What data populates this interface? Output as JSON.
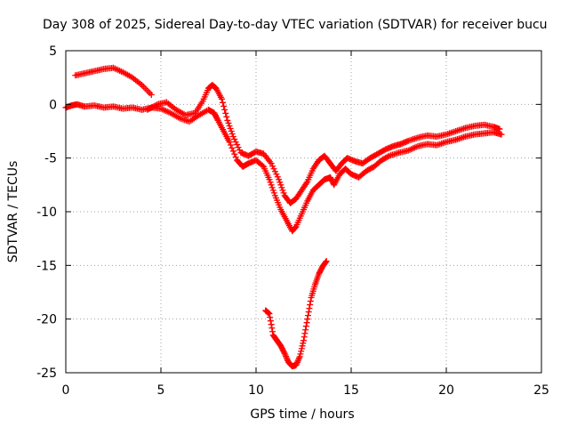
{
  "chart_data": {
    "type": "scatter",
    "title": "Day 308 of 2025, Sidereal Day-to-day VTEC variation (SDTVAR) for receiver bucu",
    "xlabel": "GPS time / hours",
    "ylabel": "SDTVAR / TECUs",
    "xlim": [
      0,
      25
    ],
    "ylim": [
      -25,
      5
    ],
    "xticks": [
      0,
      5,
      10,
      15,
      20,
      25
    ],
    "yticks": [
      5,
      0,
      -5,
      -10,
      -15,
      -20,
      -25
    ],
    "xtick_labels": [
      "0",
      "5",
      "10",
      "15",
      "20",
      "25"
    ],
    "ytick_labels": [
      "5",
      "0",
      "-5",
      "-10",
      "-15",
      "-20",
      "-25"
    ],
    "grid": true,
    "marker": "+",
    "color": "#ff0000",
    "series": [
      {
        "name": "main-lower",
        "x": [
          0.0,
          0.3,
          0.6,
          1.0,
          1.5,
          2.0,
          2.5,
          3.0,
          3.5,
          4.0,
          4.5,
          5.0,
          5.5,
          6.0,
          6.5,
          7.0,
          7.5,
          7.8,
          8.0,
          8.3,
          8.6,
          9.0,
          9.3,
          9.6,
          10.0,
          10.4,
          10.7,
          11.0,
          11.3,
          11.6,
          11.9,
          12.1,
          12.4,
          12.7,
          13.0,
          13.3,
          13.6,
          13.9,
          14.1,
          14.4,
          14.7,
          15.0,
          15.4,
          15.8,
          16.2,
          16.6,
          17.0,
          17.5,
          18.0,
          18.5,
          19.0,
          19.5,
          20.0,
          20.5,
          21.0,
          21.5,
          22.0,
          22.5,
          22.9
        ],
        "y": [
          -0.3,
          -0.1,
          0.0,
          -0.2,
          -0.1,
          -0.3,
          -0.2,
          -0.4,
          -0.3,
          -0.5,
          -0.3,
          -0.4,
          -0.8,
          -1.3,
          -1.6,
          -1.0,
          -0.5,
          -0.8,
          -1.5,
          -2.5,
          -3.5,
          -5.2,
          -5.8,
          -5.5,
          -5.2,
          -5.8,
          -7.0,
          -8.5,
          -9.8,
          -10.8,
          -11.8,
          -11.4,
          -10.2,
          -9.0,
          -8.0,
          -7.5,
          -7.0,
          -6.8,
          -7.5,
          -6.5,
          -6.0,
          -6.5,
          -6.8,
          -6.2,
          -5.8,
          -5.2,
          -4.8,
          -4.5,
          -4.3,
          -3.9,
          -3.7,
          -3.8,
          -3.5,
          -3.3,
          -3.0,
          -2.8,
          -2.7,
          -2.6,
          -2.8
        ]
      },
      {
        "name": "main-upper",
        "x": [
          4.3,
          4.8,
          5.3,
          5.8,
          6.3,
          6.8,
          7.2,
          7.5,
          7.7,
          7.9,
          8.2,
          8.5,
          8.8,
          9.2,
          9.6,
          10.0,
          10.4,
          10.8,
          11.2,
          11.5,
          11.8,
          12.1,
          12.4,
          12.7,
          13.0,
          13.3,
          13.6,
          13.9,
          14.2,
          14.5,
          14.8,
          15.2,
          15.6,
          16.0,
          16.4,
          16.8,
          17.2,
          17.6,
          18.0,
          18.5,
          19.0,
          19.5,
          20.0,
          20.5,
          21.0,
          21.5,
          22.0,
          22.5,
          22.8
        ],
        "y": [
          -0.5,
          0.0,
          0.2,
          -0.5,
          -1.0,
          -0.8,
          0.3,
          1.5,
          1.8,
          1.5,
          0.5,
          -1.5,
          -3.0,
          -4.5,
          -4.8,
          -4.4,
          -4.6,
          -5.5,
          -7.0,
          -8.5,
          -9.2,
          -8.8,
          -8.0,
          -7.2,
          -6.0,
          -5.2,
          -4.8,
          -5.5,
          -6.2,
          -5.5,
          -5.0,
          -5.3,
          -5.5,
          -5.0,
          -4.6,
          -4.2,
          -3.9,
          -3.7,
          -3.4,
          -3.1,
          -2.9,
          -3.0,
          -2.8,
          -2.5,
          -2.2,
          -2.0,
          -1.9,
          -2.1,
          -2.3
        ]
      },
      {
        "name": "early-arc",
        "x": [
          0.5,
          1.0,
          1.5,
          2.0,
          2.5,
          3.0,
          3.5,
          4.0,
          4.5
        ],
        "y": [
          2.7,
          2.9,
          3.1,
          3.3,
          3.4,
          3.0,
          2.5,
          1.8,
          0.9
        ]
      },
      {
        "name": "low-dip",
        "x": [
          10.5,
          10.7,
          10.9,
          11.1,
          11.3,
          11.5,
          11.7,
          11.9,
          12.1,
          12.3,
          12.5,
          12.7,
          12.9,
          13.1,
          13.3,
          13.5,
          13.7
        ],
        "y": [
          -19.2,
          -19.5,
          -21.5,
          -22.0,
          -22.5,
          -23.2,
          -24.0,
          -24.4,
          -24.3,
          -23.5,
          -22.0,
          -20.0,
          -18.0,
          -16.8,
          -15.8,
          -15.1,
          -14.6
        ]
      }
    ]
  }
}
